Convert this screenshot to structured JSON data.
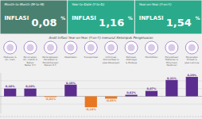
{
  "chart_data": {
    "type": "bar",
    "title": "Andil Inflasi Year-on-Year (Y-on-Y) menurut Kelompok Pengeluaran",
    "annotations": [
      {
        "label": "Month-to-Month (M-to-M)",
        "title": "INFLASI",
        "value": 0.08,
        "value_label": "0,08",
        "unit": "%",
        "color": "#4a8070"
      },
      {
        "label": "Year-to-Date (Y-to-D)",
        "title": "INFLASI",
        "value": 1.16,
        "value_label": "1,16",
        "unit": "%",
        "color": "#2aaa8a"
      },
      {
        "label": "Year-on-Year (Y-on-Y)",
        "title": "INFLASI",
        "value": 1.54,
        "value_label": "1,54",
        "unit": "%",
        "color": "#2aaa8a"
      }
    ],
    "categories": [
      "Makanan &\nAn. Cam",
      "Perumahan,\nAir, Listrik &\nBahan\nBakar R.T.",
      "Perlengkapan,\nPeralatan &\nPemeliharaan\nBahan R.T.",
      "Kesehatan",
      "Transportasi",
      "Informasi,\nKomunikasi &\nJasa Keuangan",
      "Rekreasi,\nOlahraga\n& Budaya",
      "Pendidikan",
      "Penyediaan\nMakanan &\nMinuman/\nRestoran",
      "Perawatan\nPribadi &\nJasa Lainnya"
    ],
    "values": [
      0.1,
      0.1,
      -0.01,
      0.15,
      -0.14,
      -0.03,
      0.02,
      0.07,
      0.21,
      0.25
    ],
    "value_labels": [
      "0,10%",
      "0,10%",
      "-0,01%",
      "0,15%",
      "-0,14%",
      "-0,03%",
      "0,02%",
      "0,07%",
      "0,21%",
      "0,25%"
    ],
    "colors": [
      "#5b2d8e",
      "#5b2d8e",
      "#e87722",
      "#5b2d8e",
      "#e87722",
      "#e87722",
      "#5b2d8e",
      "#5b2d8e",
      "#5b2d8e",
      "#5b2d8e"
    ],
    "ylim": [
      -0.22,
      0.3
    ],
    "yticks": [
      -0.1,
      0.0,
      0.1,
      0.2
    ],
    "grid": true,
    "tick_labels": false,
    "data_labels": true
  }
}
